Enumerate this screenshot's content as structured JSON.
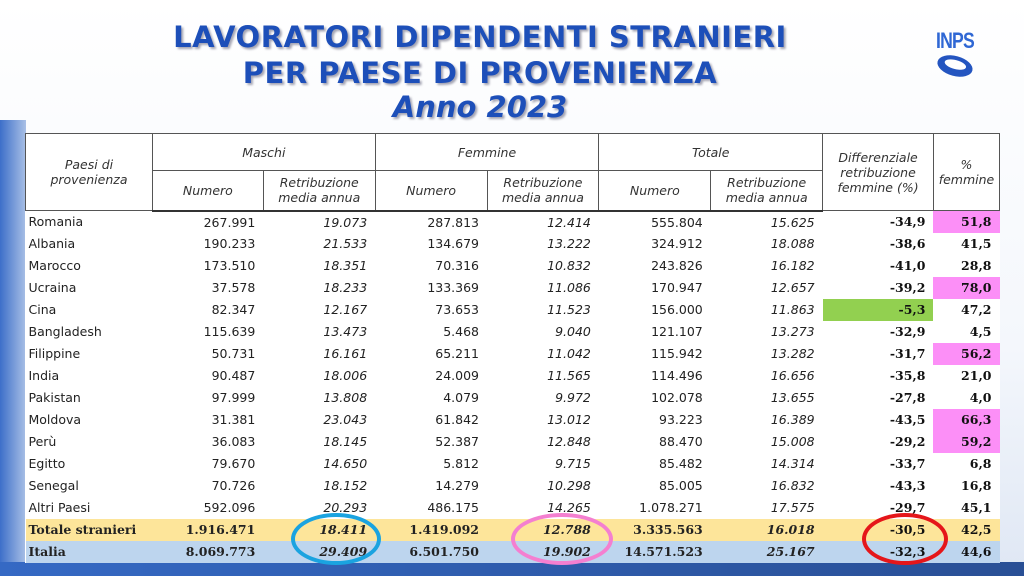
{
  "title": {
    "line1": "LAVORATORI DIPENDENTI STRANIERI",
    "line2": "PER PAESE DI PROVENIENZA",
    "line3": "Anno 2023"
  },
  "logo": {
    "text": "INPS"
  },
  "colors": {
    "title": "#1d4fb9",
    "highlight_pink": "#fc8ff7",
    "highlight_green": "#92d050",
    "total_row": "#fde59a",
    "italia_row": "#bdd5ee",
    "circle_blue": "#1aa3e0",
    "circle_pink": "#f47fd0",
    "circle_red": "#e5161a"
  },
  "table": {
    "headers": {
      "country": "Paesi di provenienza",
      "maschi": "Maschi",
      "femmine": "Femmine",
      "totale": "Totale",
      "numero": "Numero",
      "retribuzione": "Retribuzione media annua",
      "differenziale": "Differenziale retribuzione femmine (%)",
      "perc_femmine": "% femmine"
    },
    "rows": [
      {
        "country": "Romania",
        "m_num": "267.991",
        "m_ret": "19.073",
        "f_num": "287.813",
        "f_ret": "12.414",
        "t_num": "555.804",
        "t_ret": "15.625",
        "diff": "-34,9",
        "pf": "51,8",
        "pf_hl": true
      },
      {
        "country": "Albania",
        "m_num": "190.233",
        "m_ret": "21.533",
        "f_num": "134.679",
        "f_ret": "13.222",
        "t_num": "324.912",
        "t_ret": "18.088",
        "diff": "-38,6",
        "pf": "41,5"
      },
      {
        "country": "Marocco",
        "m_num": "173.510",
        "m_ret": "18.351",
        "f_num": "70.316",
        "f_ret": "10.832",
        "t_num": "243.826",
        "t_ret": "16.182",
        "diff": "-41,0",
        "pf": "28,8"
      },
      {
        "country": "Ucraina",
        "m_num": "37.578",
        "m_ret": "18.233",
        "f_num": "133.369",
        "f_ret": "11.086",
        "t_num": "170.947",
        "t_ret": "12.657",
        "diff": "-39,2",
        "pf": "78,0",
        "pf_hl": true
      },
      {
        "country": "Cina",
        "m_num": "82.347",
        "m_ret": "12.167",
        "f_num": "73.653",
        "f_ret": "11.523",
        "t_num": "156.000",
        "t_ret": "11.863",
        "diff": "-5,3",
        "pf": "47,2",
        "diff_hl": true
      },
      {
        "country": "Bangladesh",
        "m_num": "115.639",
        "m_ret": "13.473",
        "f_num": "5.468",
        "f_ret": "9.040",
        "t_num": "121.107",
        "t_ret": "13.273",
        "diff": "-32,9",
        "pf": "4,5"
      },
      {
        "country": "Filippine",
        "m_num": "50.731",
        "m_ret": "16.161",
        "f_num": "65.211",
        "f_ret": "11.042",
        "t_num": "115.942",
        "t_ret": "13.282",
        "diff": "-31,7",
        "pf": "56,2",
        "pf_hl": true
      },
      {
        "country": "India",
        "m_num": "90.487",
        "m_ret": "18.006",
        "f_num": "24.009",
        "f_ret": "11.565",
        "t_num": "114.496",
        "t_ret": "16.656",
        "diff": "-35,8",
        "pf": "21,0"
      },
      {
        "country": "Pakistan",
        "m_num": "97.999",
        "m_ret": "13.808",
        "f_num": "4.079",
        "f_ret": "9.972",
        "t_num": "102.078",
        "t_ret": "13.655",
        "diff": "-27,8",
        "pf": "4,0"
      },
      {
        "country": "Moldova",
        "m_num": "31.381",
        "m_ret": "23.043",
        "f_num": "61.842",
        "f_ret": "13.012",
        "t_num": "93.223",
        "t_ret": "16.389",
        "diff": "-43,5",
        "pf": "66,3",
        "pf_hl": true
      },
      {
        "country": "Perù",
        "m_num": "36.083",
        "m_ret": "18.145",
        "f_num": "52.387",
        "f_ret": "12.848",
        "t_num": "88.470",
        "t_ret": "15.008",
        "diff": "-29,2",
        "pf": "59,2",
        "pf_hl": true
      },
      {
        "country": "Egitto",
        "m_num": "79.670",
        "m_ret": "14.650",
        "f_num": "5.812",
        "f_ret": "9.715",
        "t_num": "85.482",
        "t_ret": "14.314",
        "diff": "-33,7",
        "pf": "6,8"
      },
      {
        "country": "Senegal",
        "m_num": "70.726",
        "m_ret": "18.152",
        "f_num": "14.279",
        "f_ret": "10.298",
        "t_num": "85.005",
        "t_ret": "16.832",
        "diff": "-43,3",
        "pf": "16,8"
      },
      {
        "country": "Altri Paesi",
        "m_num": "592.096",
        "m_ret": "20.293",
        "f_num": "486.175",
        "f_ret": "14.265",
        "t_num": "1.078.271",
        "t_ret": "17.575",
        "diff": "-29,7",
        "pf": "45,1"
      }
    ],
    "totale": {
      "country": "Totale stranieri",
      "m_num": "1.916.471",
      "m_ret": "18.411",
      "f_num": "1.419.092",
      "f_ret": "12.788",
      "t_num": "3.335.563",
      "t_ret": "16.018",
      "diff": "-30,5",
      "pf": "42,5"
    },
    "italia": {
      "country": "Italia",
      "m_num": "8.069.773",
      "m_ret": "29.409",
      "f_num": "6.501.750",
      "f_ret": "19.902",
      "t_num": "14.571.523",
      "t_ret": "25.167",
      "diff": "-32,3",
      "pf": "44,6"
    }
  }
}
